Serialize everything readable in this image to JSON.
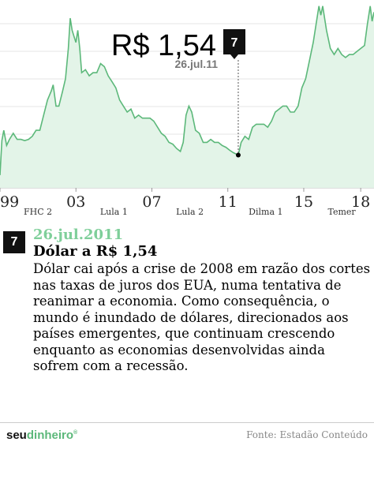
{
  "chart_data": {
    "type": "area",
    "title": "",
    "xlabel": "",
    "ylabel": "",
    "x_ticks": [
      "99",
      "03",
      "07",
      "11",
      "15",
      "18"
    ],
    "tick_years": [
      1999,
      2003,
      2007,
      2011,
      2015,
      2018
    ],
    "governments": [
      "FHC 2",
      "Lula 1",
      "Lula 2",
      "Dilma 1",
      "Temer"
    ],
    "government_years": [
      2001.0,
      2005.0,
      2009.0,
      2013.0,
      2017.0
    ],
    "xlim": [
      1999.0,
      2018.7
    ],
    "ylim": [
      1.0,
      4.1
    ],
    "grid": true,
    "series": [
      {
        "x": [
          1999.0,
          1999.05,
          1999.1,
          1999.2,
          1999.35,
          1999.5,
          1999.7,
          1999.9,
          2000.1,
          2000.3,
          2000.5,
          2000.7,
          2000.9,
          2001.1,
          2001.3,
          2001.5,
          2001.7,
          2001.8,
          2001.95,
          2002.1,
          2002.3,
          2002.45,
          2002.6,
          2002.7,
          2002.8,
          2002.9,
          2003.0,
          2003.1,
          2003.2,
          2003.3,
          2003.5,
          2003.7,
          2003.9,
          2004.1,
          2004.3,
          2004.5,
          2004.7,
          2004.9,
          2005.1,
          2005.3,
          2005.5,
          2005.7,
          2005.9,
          2006.1,
          2006.3,
          2006.5,
          2006.7,
          2006.9,
          2007.1,
          2007.3,
          2007.5,
          2007.7,
          2007.9,
          2008.1,
          2008.3,
          2008.5,
          2008.65,
          2008.8,
          2008.95,
          2009.1,
          2009.3,
          2009.5,
          2009.7,
          2009.9,
          2010.1,
          2010.3,
          2010.5,
          2010.7,
          2010.9,
          2011.1,
          2011.3,
          2011.55,
          2011.7,
          2011.9,
          2012.1,
          2012.3,
          2012.5,
          2012.7,
          2012.9,
          2013.1,
          2013.3,
          2013.5,
          2013.7,
          2013.9,
          2014.1,
          2014.3,
          2014.5,
          2014.7,
          2014.9,
          2015.1,
          2015.3,
          2015.5,
          2015.7,
          2015.8,
          2015.9,
          2016.0,
          2016.2,
          2016.4,
          2016.6,
          2016.8,
          2017.0,
          2017.2,
          2017.4,
          2017.6,
          2017.8,
          2018.0,
          2018.2,
          2018.35,
          2018.5,
          2018.6,
          2018.7
        ],
        "values": [
          1.21,
          1.5,
          1.78,
          1.95,
          1.7,
          1.8,
          1.9,
          1.8,
          1.8,
          1.78,
          1.8,
          1.85,
          1.95,
          1.95,
          2.2,
          2.45,
          2.6,
          2.7,
          2.35,
          2.35,
          2.6,
          2.8,
          3.3,
          3.8,
          3.6,
          3.5,
          3.4,
          3.6,
          3.3,
          2.9,
          2.95,
          2.85,
          2.9,
          2.9,
          3.05,
          3.0,
          2.85,
          2.75,
          2.65,
          2.45,
          2.35,
          2.25,
          2.3,
          2.15,
          2.2,
          2.15,
          2.15,
          2.15,
          2.1,
          2.0,
          1.9,
          1.85,
          1.75,
          1.72,
          1.65,
          1.6,
          1.75,
          2.2,
          2.35,
          2.25,
          1.95,
          1.9,
          1.75,
          1.75,
          1.8,
          1.75,
          1.75,
          1.7,
          1.67,
          1.62,
          1.58,
          1.54,
          1.75,
          1.85,
          1.8,
          2.0,
          2.05,
          2.05,
          2.05,
          2.0,
          2.1,
          2.25,
          2.3,
          2.35,
          2.35,
          2.25,
          2.25,
          2.35,
          2.65,
          2.8,
          3.1,
          3.4,
          3.8,
          4.0,
          3.85,
          4.0,
          3.6,
          3.3,
          3.2,
          3.3,
          3.2,
          3.15,
          3.2,
          3.2,
          3.25,
          3.3,
          3.35,
          3.7,
          4.0,
          3.75,
          3.9
        ]
      }
    ]
  },
  "highlight": {
    "value_label": "R$ 1,54",
    "date_label": "26.jul.11",
    "number": "7",
    "year": 2011.55,
    "value": 1.54
  },
  "event": {
    "number": "7",
    "date": "26.jul.2011",
    "title": "Dólar a R$ 1,54",
    "description": "Dólar cai após a crise de 2008 em razão dos cortes nas taxas de juros dos EUA, numa tentativa de reanimar a economia. Como consequência, o mundo é inundado de dólares, direcionados aos países emergentes, que continuam crescendo enquanto as economias desenvolvidas ainda sofrem com a recessão."
  },
  "footer": {
    "logo_main": "seu",
    "logo_accent": "dinheiro",
    "logo_mark": "®",
    "source": "Fonte: Estadão Conteúdo"
  },
  "colors": {
    "area_fill": "#e3f4e8",
    "line": "#5cb87a",
    "accent": "#7fcf9a",
    "text": "#000000"
  }
}
